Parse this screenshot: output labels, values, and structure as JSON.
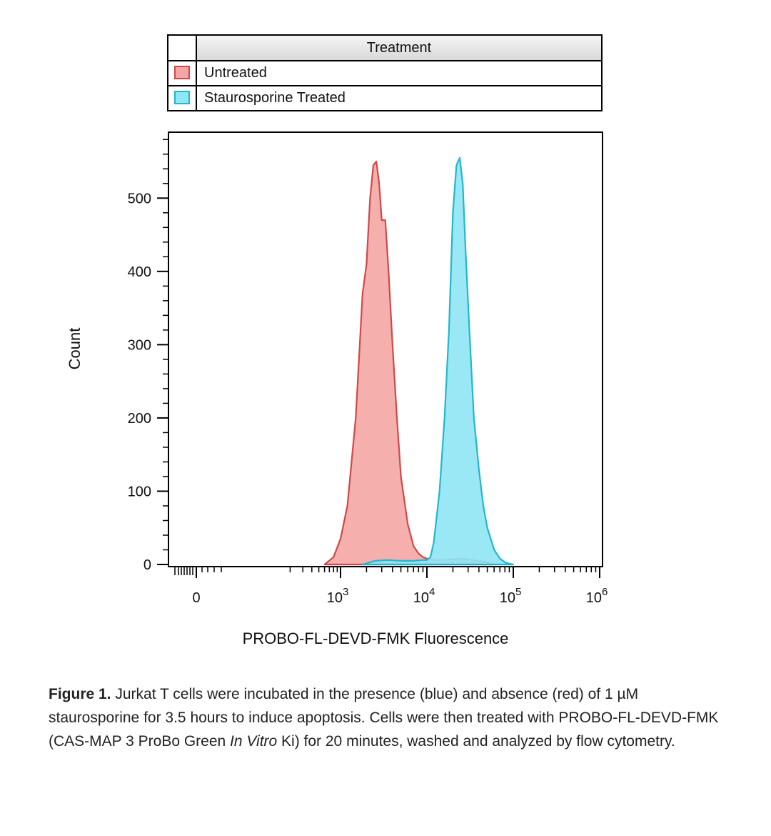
{
  "legend": {
    "title": "Treatment",
    "entries": [
      {
        "label": "Untreated",
        "fill": "#f4a6a4",
        "stroke": "#d0494a"
      },
      {
        "label": "Staurosporine Treated",
        "fill": "#8fe6f5",
        "stroke": "#21b7cf"
      }
    ]
  },
  "chart_data": {
    "type": "area",
    "xlabel": "PROBO-FL-DEVD-FMK Fluorescence",
    "ylabel": "Count",
    "x_scale": "biexponential",
    "ylim": [
      0,
      590
    ],
    "y_ticks": [
      0,
      100,
      200,
      300,
      400,
      500
    ],
    "x_ticks": [
      {
        "value": 0,
        "base": "0",
        "exp": ""
      },
      {
        "value": 1000,
        "base": "10",
        "exp": "3"
      },
      {
        "value": 10000,
        "base": "10",
        "exp": "4"
      },
      {
        "value": 100000,
        "base": "10",
        "exp": "5"
      },
      {
        "value": 1000000,
        "base": "10",
        "exp": "6"
      }
    ],
    "series": [
      {
        "name": "Untreated",
        "fill": "#f4a6a4",
        "stroke": "#d0494a",
        "x": [
          600,
          800,
          1000,
          1200,
          1500,
          1800,
          2000,
          2200,
          2400,
          2600,
          2800,
          3000,
          3300,
          3600,
          4000,
          4500,
          5000,
          6000,
          7000,
          8000,
          9000,
          10000,
          12000,
          15000,
          20000,
          25000,
          30000,
          40000,
          50000,
          60000
        ],
        "y": [
          0,
          10,
          35,
          80,
          200,
          370,
          410,
          500,
          545,
          550,
          520,
          470,
          470,
          400,
          300,
          200,
          120,
          55,
          25,
          15,
          10,
          8,
          6,
          6,
          7,
          8,
          7,
          5,
          3,
          0
        ]
      },
      {
        "name": "Staurosporine Treated",
        "fill": "#8fe6f5",
        "stroke": "#21b7cf",
        "x": [
          1800,
          2500,
          3500,
          5000,
          7000,
          9000,
          10000,
          11000,
          12000,
          14000,
          16000,
          18000,
          20000,
          22000,
          24000,
          26000,
          28000,
          31000,
          35000,
          40000,
          45000,
          50000,
          60000,
          70000,
          80000,
          90000,
          100000
        ],
        "y": [
          0,
          5,
          6,
          5,
          5,
          6,
          6,
          10,
          30,
          100,
          200,
          320,
          480,
          545,
          555,
          520,
          430,
          320,
          200,
          130,
          80,
          50,
          20,
          8,
          3,
          1,
          0
        ]
      }
    ]
  },
  "caption": {
    "figure_label": "Figure 1.",
    "text_1": " Jurkat T cells were incubated in the presence (blue) and absence (red) of 1 µM staurosporine for 3.5 hours to induce apoptosis. Cells were then treated with PROBO-FL-DEVD-FMK (CAS-MAP 3 ProBo Green ",
    "italic": "In Vitro",
    "text_2": " Ki) for 20 minutes, washed and analyzed by flow cytometry."
  }
}
